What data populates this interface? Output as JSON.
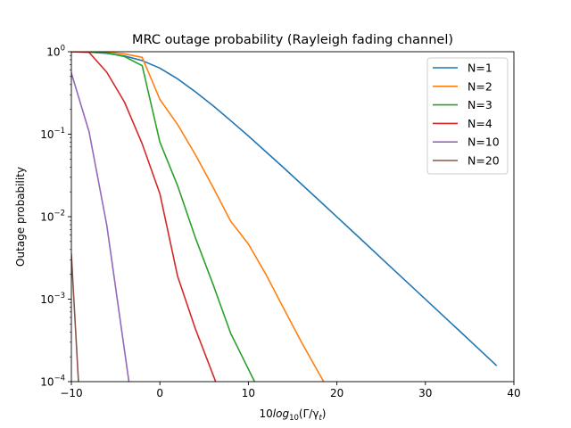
{
  "chart_data": {
    "type": "line",
    "title": "MRC outage probability (Rayleigh fading channel)",
    "xlabel": {
      "prefix": "10",
      "func": "log",
      "sub": "10",
      "args": "(Γ/γ",
      "argsub": "t",
      "tail": ")"
    },
    "ylabel": "Outage probability",
    "xlim": [
      -10,
      40
    ],
    "ylim": [
      0.0001,
      1
    ],
    "yscale": "log",
    "grid": false,
    "legend_position": "top-right",
    "x_ticks": [
      {
        "value": -10,
        "label": "−10"
      },
      {
        "value": 0,
        "label": "0"
      },
      {
        "value": 10,
        "label": "10"
      },
      {
        "value": 20,
        "label": "20"
      },
      {
        "value": 30,
        "label": "30"
      },
      {
        "value": 40,
        "label": "40"
      }
    ],
    "y_ticks": [
      {
        "value": 1,
        "base": "10",
        "exp": "0"
      },
      {
        "value": 0.1,
        "base": "10",
        "exp": "−1"
      },
      {
        "value": 0.01,
        "base": "10",
        "exp": "−2"
      },
      {
        "value": 0.001,
        "base": "10",
        "exp": "−3"
      },
      {
        "value": 0.0001,
        "base": "10",
        "exp": "−4"
      }
    ],
    "series": [
      {
        "name": "N=1",
        "color": "#1f77b4",
        "x": [
          -10,
          -8,
          -6,
          -4,
          -2,
          0,
          2,
          4,
          6,
          8,
          10,
          14,
          18,
          22,
          26,
          30,
          34,
          38
        ],
        "y": [
          0.999,
          0.989,
          0.956,
          0.889,
          0.781,
          0.632,
          0.469,
          0.327,
          0.222,
          0.146,
          0.0952,
          0.0391,
          0.0157,
          0.00629,
          0.0025,
          0.000999,
          0.000398,
          0.000158
        ]
      },
      {
        "name": "N=2",
        "color": "#ff7f0e",
        "x": [
          -10,
          -8,
          -6,
          -4,
          -2,
          0,
          2,
          4,
          6,
          8,
          10,
          12,
          14,
          16,
          18.5
        ],
        "y": [
          0.9999,
          0.9998,
          0.991,
          0.941,
          0.855,
          0.264,
          0.131,
          0.0568,
          0.0228,
          0.0088,
          0.00467,
          0.00198,
          0.000767,
          0.000301,
          0.0001
        ]
      },
      {
        "name": "N=3",
        "color": "#2ca02c",
        "x": [
          -10,
          -8,
          -6,
          -4,
          -2,
          0,
          2,
          4,
          6,
          8,
          10.7
        ],
        "y": [
          0.9999,
          0.995,
          0.968,
          0.873,
          0.678,
          0.0803,
          0.0238,
          0.0056,
          0.00152,
          0.000385,
          0.0001
        ]
      },
      {
        "name": "N=4",
        "color": "#d62728",
        "x": [
          -10,
          -8,
          -6,
          -4,
          -2,
          0,
          2,
          4,
          6.3
        ],
        "y": [
          0.9998,
          0.982,
          0.564,
          0.245,
          0.0766,
          0.019,
          0.0019,
          0.00044,
          0.0001
        ]
      },
      {
        "name": "N=10",
        "color": "#9467bd",
        "x": [
          -10,
          -8,
          -6,
          -3.5
        ],
        "y": [
          0.55,
          0.107,
          0.0079,
          0.0001
        ]
      },
      {
        "name": "N=20",
        "color": "#8c564b",
        "x": [
          -10,
          -9.2
        ],
        "y": [
          0.0035,
          0.0001
        ]
      }
    ]
  }
}
